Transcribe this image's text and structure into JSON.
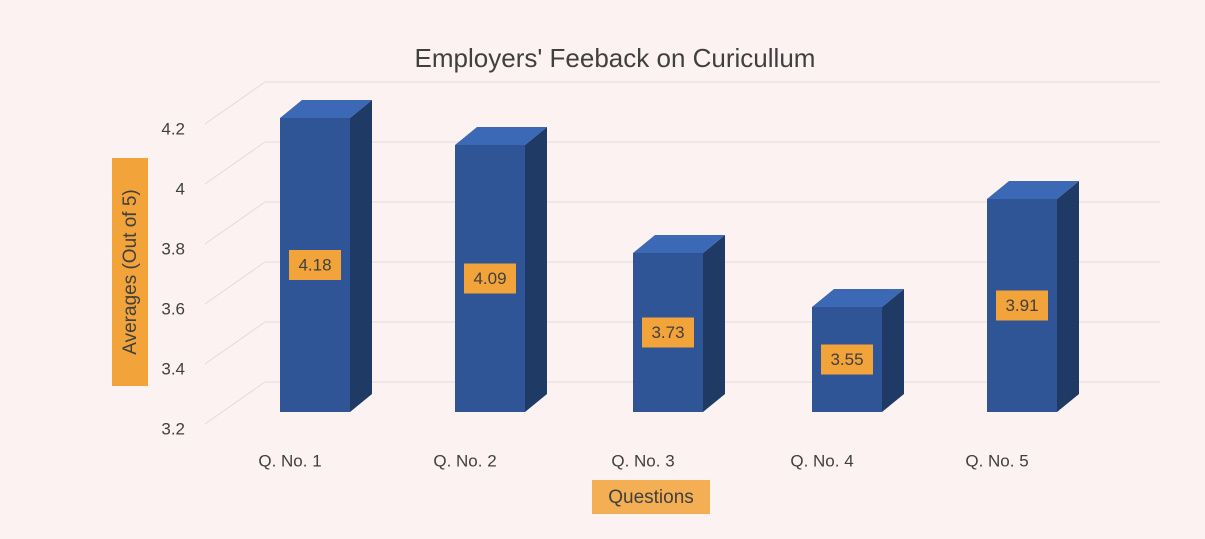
{
  "chart_data": {
    "type": "bar3d",
    "title": "Employers' Feeback on Curicullum",
    "x_label": "Questions",
    "y_label": "Averages (Out of 5)",
    "categories": [
      "Q. No. 1",
      "Q. No. 2",
      "Q. No. 3",
      "Q. No. 4",
      "Q. No. 5"
    ],
    "values": [
      4.18,
      4.09,
      3.73,
      3.55,
      3.91
    ],
    "color": "#2f5597",
    "label_color": "#f2a33a",
    "ylim": [
      3.2,
      4.2
    ],
    "yticks": [
      3.2,
      3.4,
      3.6,
      3.8,
      4,
      4.2
    ],
    "grid": true
  }
}
